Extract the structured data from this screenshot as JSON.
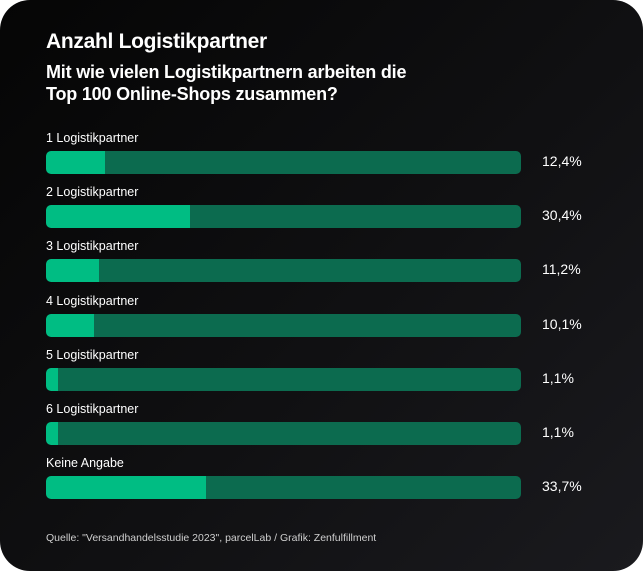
{
  "chart_data": {
    "type": "bar",
    "orientation": "horizontal",
    "title": "Anzahl Logistikpartner",
    "subtitle": [
      "Mit wie vielen Logistikpartnern arbeiten die",
      "Top 100 Online-Shops zusammen?"
    ],
    "categories": [
      "1 Logistikpartner",
      "2 Logistikpartner",
      "3 Logistikpartner",
      "4 Logistikpartner",
      "5 Logistikpartner",
      "6 Logistikpartner",
      "Keine Angabe"
    ],
    "values": [
      12.4,
      30.4,
      11.2,
      10.1,
      1.1,
      1.1,
      33.7
    ],
    "value_labels": [
      "12,4%",
      "30,4%",
      "11,2%",
      "10,1%",
      "1,1%",
      "1,1%",
      "33,7%"
    ],
    "xlim": [
      0,
      100
    ],
    "unit": "%",
    "grid": false,
    "colors": {
      "fill": "#00bd83",
      "track": "#0c6b4f",
      "background": "#0b0b0d",
      "text": "#ffffff"
    },
    "source": "Quelle: \"Versandhandelsstudie 2023\", parcelLab / Grafik: Zenfulfillment"
  }
}
